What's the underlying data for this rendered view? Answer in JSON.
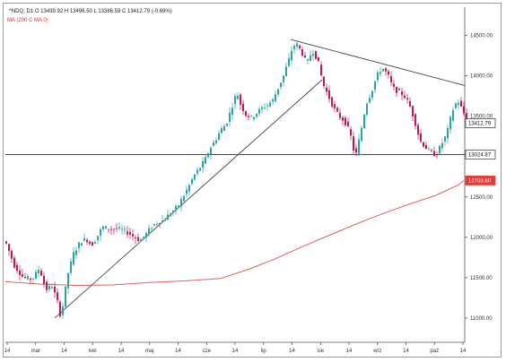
{
  "header": {
    "ohlc_text": "^NDQ, D1  O 13439.92  H 13496.50  L 13386.59  C 13412.79  (-0.69%)",
    "ma_text": "MA (200 C MA 0)"
  },
  "chart_data": {
    "type": "candlestick",
    "title": "",
    "xlabel": "",
    "ylabel": "",
    "ylim": [
      10700,
      14850
    ],
    "y_ticks": [
      "14500.00",
      "14000.00",
      "13500.00",
      "13000.00",
      "12500.00",
      "12000.00",
      "11500.00",
      "11000.00"
    ],
    "x_ticks": [
      "14",
      "mar",
      "14",
      "kwi",
      "14",
      "maj",
      "14",
      "cze",
      "14",
      "lip",
      "14",
      "sie",
      "14",
      "wrz",
      "14",
      "paź",
      "14"
    ],
    "price_labels": [
      {
        "text": "13412.79",
        "value": 13412.79,
        "style": "last"
      },
      {
        "text": "13024.87",
        "value": 13024.87,
        "style": "level"
      },
      {
        "text": "12703.60",
        "value": 12703.6,
        "style": "ma"
      }
    ],
    "horizontal_line": 13024.87,
    "trendlines": [
      {
        "from": [
          55,
          11000
        ],
        "to": [
          353,
          13950
        ]
      },
      {
        "from": [
          318,
          14450
        ],
        "to": [
          512,
          13880
        ]
      }
    ],
    "ma_series": [
      [
        0,
        11450
      ],
      [
        40,
        11420
      ],
      [
        80,
        11405
      ],
      [
        120,
        11410
      ],
      [
        160,
        11440
      ],
      [
        200,
        11460
      ],
      [
        240,
        11490
      ],
      [
        270,
        11600
      ],
      [
        300,
        11730
      ],
      [
        330,
        11880
      ],
      [
        360,
        12020
      ],
      [
        390,
        12160
      ],
      [
        420,
        12290
      ],
      [
        450,
        12410
      ],
      [
        480,
        12520
      ],
      [
        505,
        12650
      ],
      [
        511,
        12703
      ]
    ],
    "price_path": [
      [
        0,
        11950
      ],
      [
        10,
        11650
      ],
      [
        20,
        11500
      ],
      [
        30,
        11480
      ],
      [
        38,
        11620
      ],
      [
        45,
        11350
      ],
      [
        52,
        11400
      ],
      [
        58,
        11200
      ],
      [
        62,
        11000
      ],
      [
        66,
        11300
      ],
      [
        70,
        11560
      ],
      [
        76,
        11800
      ],
      [
        84,
        11950
      ],
      [
        90,
        11980
      ],
      [
        96,
        11900
      ],
      [
        102,
        12000
      ],
      [
        108,
        12130
      ],
      [
        116,
        12100
      ],
      [
        124,
        12110
      ],
      [
        130,
        12090
      ],
      [
        138,
        12050
      ],
      [
        144,
        12000
      ],
      [
        150,
        11960
      ],
      [
        156,
        12030
      ],
      [
        162,
        12120
      ],
      [
        168,
        12180
      ],
      [
        176,
        12210
      ],
      [
        184,
        12300
      ],
      [
        192,
        12380
      ],
      [
        198,
        12500
      ],
      [
        204,
        12620
      ],
      [
        210,
        12760
      ],
      [
        216,
        12850
      ],
      [
        222,
        12950
      ],
      [
        228,
        13100
      ],
      [
        234,
        13200
      ],
      [
        240,
        13330
      ],
      [
        246,
        13400
      ],
      [
        252,
        13600
      ],
      [
        258,
        13800
      ],
      [
        262,
        13650
      ],
      [
        268,
        13520
      ],
      [
        274,
        13480
      ],
      [
        280,
        13540
      ],
      [
        286,
        13600
      ],
      [
        292,
        13640
      ],
      [
        298,
        13700
      ],
      [
        304,
        13850
      ],
      [
        310,
        14000
      ],
      [
        316,
        14200
      ],
      [
        320,
        14350
      ],
      [
        324,
        14400
      ],
      [
        330,
        14300
      ],
      [
        336,
        14150
      ],
      [
        342,
        14320
      ],
      [
        348,
        14200
      ],
      [
        354,
        13900
      ],
      [
        360,
        13750
      ],
      [
        366,
        13600
      ],
      [
        372,
        13500
      ],
      [
        378,
        13440
      ],
      [
        384,
        13300
      ],
      [
        390,
        12980
      ],
      [
        396,
        13300
      ],
      [
        402,
        13650
      ],
      [
        408,
        13800
      ],
      [
        414,
        14000
      ],
      [
        420,
        14100
      ],
      [
        426,
        14020
      ],
      [
        432,
        13850
      ],
      [
        438,
        13800
      ],
      [
        444,
        13760
      ],
      [
        450,
        13650
      ],
      [
        456,
        13450
      ],
      [
        462,
        13200
      ],
      [
        468,
        13120
      ],
      [
        474,
        13050
      ],
      [
        480,
        13020
      ],
      [
        486,
        13150
      ],
      [
        492,
        13280
      ],
      [
        498,
        13560
      ],
      [
        504,
        13700
      ],
      [
        510,
        13560
      ],
      [
        516,
        13420
      ]
    ]
  }
}
